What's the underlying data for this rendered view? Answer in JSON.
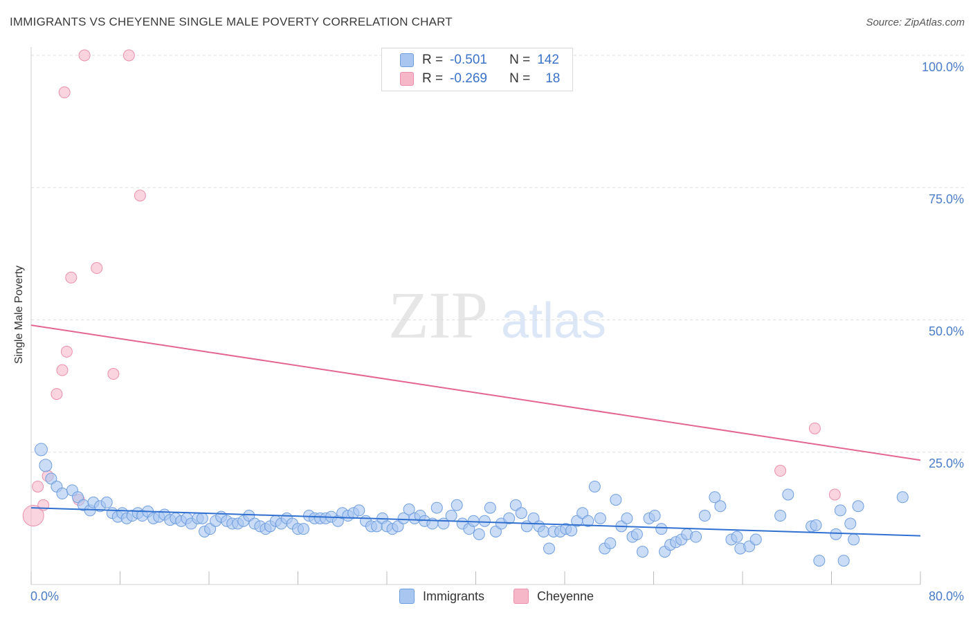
{
  "header": {
    "title": "IMMIGRANTS VS CHEYENNE SINGLE MALE POVERTY CORRELATION CHART",
    "source": "Source: ZipAtlas.com"
  },
  "watermark": {
    "zip": "ZIP",
    "atlas": "atlas"
  },
  "legend": {
    "rows": [
      {
        "r_label": "R =",
        "r_value": "-0.501",
        "n_label": "N =",
        "n_value": "142",
        "color": "#a9c6f0"
      },
      {
        "r_label": "R =",
        "r_value": "-0.269",
        "n_label": "N =",
        "n_value": "18",
        "color": "#f6b8c9"
      }
    ]
  },
  "bottom_legend": {
    "immigrants": "Immigrants",
    "cheyenne": "Cheyenne"
  },
  "colors": {
    "immigrants_fill": "#a9c6f0",
    "immigrants_stroke": "#6e9de0",
    "immigrants_line": "#2f6fd0",
    "cheyenne_fill": "#f6b8c9",
    "cheyenne_stroke": "#ec8fab",
    "cheyenne_line": "#e46592",
    "grid": "#dddddd",
    "axis_text": "#4a7cc9"
  },
  "chart_data": {
    "type": "scatter",
    "title": "IMMIGRANTS VS CHEYENNE SINGLE MALE POVERTY CORRELATION CHART",
    "xlabel": "",
    "ylabel": "Single Male Poverty",
    "xlim": [
      0,
      80
    ],
    "ylim": [
      0,
      100
    ],
    "x_tick_labels": [
      "0.0%",
      "80.0%"
    ],
    "y_tick_labels": [
      "100.0%",
      "75.0%",
      "50.0%",
      "25.0%"
    ],
    "y_ticks": [
      100,
      75,
      50,
      25
    ],
    "series": [
      {
        "name": "Immigrants",
        "R": -0.501,
        "N": 142,
        "trendline": {
          "x": [
            0,
            80
          ],
          "y": [
            14.5,
            9.2
          ]
        },
        "points": [
          [
            0.9,
            25.5
          ],
          [
            1.3,
            22.5
          ],
          [
            1.8,
            20
          ],
          [
            2.3,
            18.5
          ],
          [
            2.8,
            17.2
          ],
          [
            3.7,
            17.8
          ],
          [
            4.2,
            16.5
          ],
          [
            4.7,
            15
          ],
          [
            5.3,
            14
          ],
          [
            5.6,
            15.5
          ],
          [
            6.2,
            14.8
          ],
          [
            6.8,
            15.5
          ],
          [
            7.3,
            13.5
          ],
          [
            7.8,
            12.8
          ],
          [
            8.2,
            13.5
          ],
          [
            8.6,
            12.5
          ],
          [
            9.1,
            13
          ],
          [
            9.6,
            13.5
          ],
          [
            10,
            13
          ],
          [
            10.5,
            13.8
          ],
          [
            11,
            12.5
          ],
          [
            11.5,
            12.8
          ],
          [
            12,
            13.2
          ],
          [
            12.5,
            12.2
          ],
          [
            13,
            12.5
          ],
          [
            13.5,
            12
          ],
          [
            14,
            12.5
          ],
          [
            14.4,
            11.5
          ],
          [
            15,
            12.5
          ],
          [
            15.4,
            12.5
          ],
          [
            15.6,
            10
          ],
          [
            16.1,
            10.5
          ],
          [
            16.6,
            12
          ],
          [
            17.1,
            12.8
          ],
          [
            17.6,
            12
          ],
          [
            18.1,
            11.5
          ],
          [
            18.6,
            11.5
          ],
          [
            19.1,
            12
          ],
          [
            19.6,
            13
          ],
          [
            20.1,
            11.5
          ],
          [
            20.6,
            11
          ],
          [
            21.1,
            10.5
          ],
          [
            21.5,
            11
          ],
          [
            22,
            12
          ],
          [
            22.5,
            11.5
          ],
          [
            23,
            12.5
          ],
          [
            23.5,
            11.5
          ],
          [
            24,
            10.5
          ],
          [
            24.5,
            10.5
          ],
          [
            25,
            13
          ],
          [
            25.5,
            12.5
          ],
          [
            26,
            12.5
          ],
          [
            26.5,
            12.5
          ],
          [
            27,
            12.8
          ],
          [
            27.6,
            12
          ],
          [
            28,
            13.5
          ],
          [
            28.5,
            13
          ],
          [
            29,
            13.5
          ],
          [
            29.5,
            14
          ],
          [
            30.1,
            12
          ],
          [
            30.6,
            11
          ],
          [
            31.1,
            11
          ],
          [
            31.6,
            12.5
          ],
          [
            32,
            11
          ],
          [
            32.5,
            10.5
          ],
          [
            33,
            11
          ],
          [
            33.5,
            12.5
          ],
          [
            34,
            14.2
          ],
          [
            34.5,
            12.5
          ],
          [
            35,
            13
          ],
          [
            35.4,
            12
          ],
          [
            36.1,
            11.5
          ],
          [
            36.5,
            14.5
          ],
          [
            37.1,
            11.5
          ],
          [
            37.8,
            13
          ],
          [
            38.3,
            15
          ],
          [
            38.8,
            11.5
          ],
          [
            39.4,
            10.5
          ],
          [
            39.8,
            12
          ],
          [
            40.3,
            9.5
          ],
          [
            40.8,
            12
          ],
          [
            41.3,
            14.5
          ],
          [
            41.8,
            10
          ],
          [
            42.3,
            11.5
          ],
          [
            43,
            12.5
          ],
          [
            43.6,
            15
          ],
          [
            44.1,
            13.5
          ],
          [
            44.6,
            11
          ],
          [
            45.2,
            12.5
          ],
          [
            45.7,
            11
          ],
          [
            46.1,
            10
          ],
          [
            46.6,
            6.8
          ],
          [
            47,
            10
          ],
          [
            47.6,
            10
          ],
          [
            48.1,
            10.5
          ],
          [
            48.6,
            10.2
          ],
          [
            49.1,
            12
          ],
          [
            49.6,
            13.5
          ],
          [
            50.1,
            12
          ],
          [
            50.7,
            18.5
          ],
          [
            51.2,
            12.5
          ],
          [
            51.6,
            6.8
          ],
          [
            52.1,
            7.8
          ],
          [
            52.6,
            16
          ],
          [
            53.1,
            11
          ],
          [
            53.6,
            12.5
          ],
          [
            54.1,
            9
          ],
          [
            54.5,
            9.5
          ],
          [
            55,
            6.2
          ],
          [
            55.6,
            12.5
          ],
          [
            56.1,
            13
          ],
          [
            56.7,
            10.5
          ],
          [
            57,
            6.2
          ],
          [
            57.5,
            7.5
          ],
          [
            58,
            8
          ],
          [
            58.5,
            8.5
          ],
          [
            59,
            9.5
          ],
          [
            59.8,
            9
          ],
          [
            60.6,
            13
          ],
          [
            61.5,
            16.5
          ],
          [
            62,
            14.8
          ],
          [
            63,
            8.5
          ],
          [
            63.5,
            9
          ],
          [
            63.8,
            6.8
          ],
          [
            64.6,
            7.2
          ],
          [
            65.2,
            8.5
          ],
          [
            67.4,
            13
          ],
          [
            68.1,
            17
          ],
          [
            70.2,
            11
          ],
          [
            70.6,
            11.2
          ],
          [
            70.9,
            4.5
          ],
          [
            72.4,
            9.5
          ],
          [
            72.8,
            14
          ],
          [
            73.1,
            4.5
          ],
          [
            73.7,
            11.5
          ],
          [
            74,
            8.5
          ],
          [
            74.4,
            14.8
          ],
          [
            78.4,
            16.5
          ]
        ]
      },
      {
        "name": "Cheyenne",
        "R": -0.269,
        "N": 18,
        "trendline": {
          "x": [
            0,
            80
          ],
          "y": [
            49,
            23.5
          ]
        },
        "points": [
          [
            0.2,
            13
          ],
          [
            0.6,
            18.5
          ],
          [
            1.1,
            15
          ],
          [
            1.5,
            20.5
          ],
          [
            2.3,
            36
          ],
          [
            2.8,
            40.5
          ],
          [
            3,
            93
          ],
          [
            3.2,
            44
          ],
          [
            3.6,
            58
          ],
          [
            4.3,
            16
          ],
          [
            4.8,
            100
          ],
          [
            5.9,
            59.8
          ],
          [
            7.4,
            39.8
          ],
          [
            8.8,
            100
          ],
          [
            9.8,
            73.5
          ],
          [
            67.4,
            21.5
          ],
          [
            70.5,
            29.5
          ],
          [
            72.3,
            17
          ]
        ]
      }
    ]
  }
}
